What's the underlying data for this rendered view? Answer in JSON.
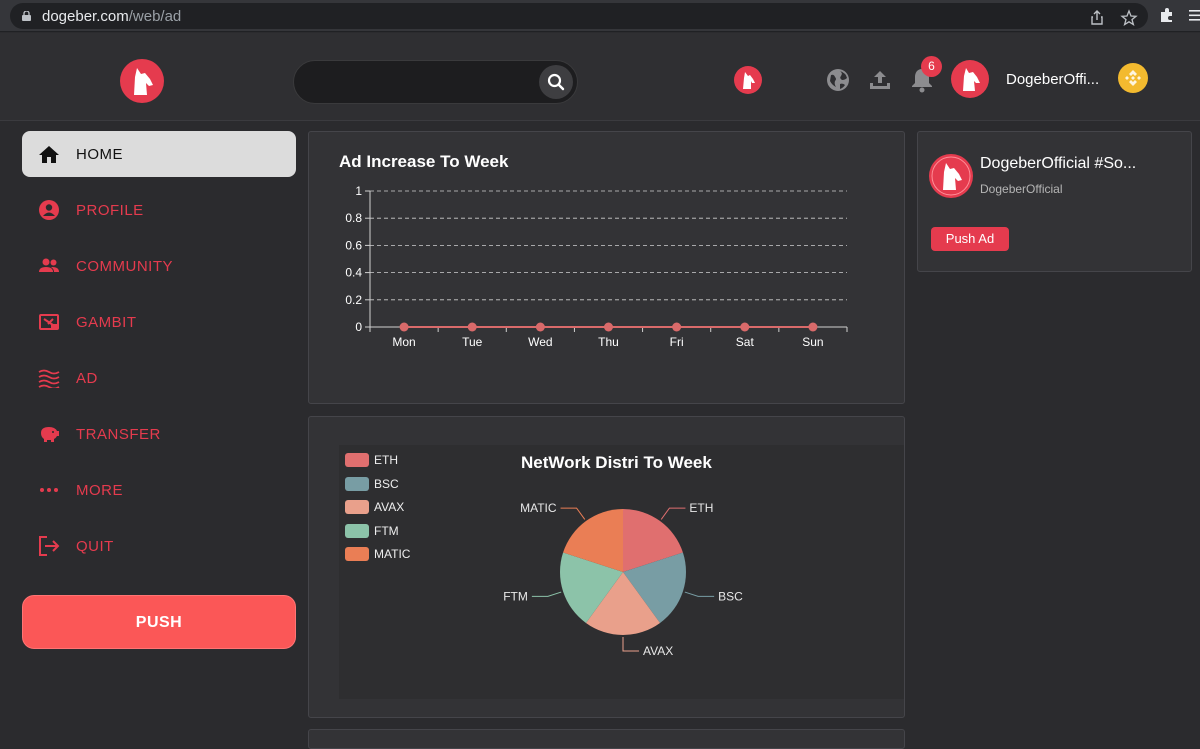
{
  "browser": {
    "url_host": "dogeber.com",
    "url_path": "/web/ad"
  },
  "header": {
    "search": {
      "placeholder": ""
    },
    "notification_count": "6",
    "username": "DogeberOffi..."
  },
  "sidebar": {
    "items": [
      {
        "label": "HOME",
        "icon": "home-icon",
        "active": true
      },
      {
        "label": "PROFILE",
        "icon": "profile-icon"
      },
      {
        "label": "COMMUNITY",
        "icon": "community-icon"
      },
      {
        "label": "GAMBIT",
        "icon": "gambit-icon"
      },
      {
        "label": "AD",
        "icon": "ad-icon"
      },
      {
        "label": "TRANSFER",
        "icon": "piggy-bank-icon"
      },
      {
        "label": "MORE",
        "icon": "more-icon"
      },
      {
        "label": "QUIT",
        "icon": "logout-icon"
      }
    ],
    "push_label": "PUSH"
  },
  "profile_card": {
    "name": "DogeberOfficial #So...",
    "handle": "DogeberOfficial",
    "push_ad_label": "Push Ad"
  },
  "colors": {
    "accent": "#e53b4e",
    "push": "#fb5757",
    "background": "#2b2b2e",
    "card": "#333336"
  },
  "chart_data": [
    {
      "type": "line",
      "title": "Ad Increase To Week",
      "categories": [
        "Mon",
        "Tue",
        "Wed",
        "Thu",
        "Fri",
        "Sat",
        "Sun"
      ],
      "series": [
        {
          "values": [
            0,
            0,
            0,
            0,
            0,
            0,
            0
          ],
          "color": "#d96a6a"
        }
      ],
      "ylim": [
        0,
        1
      ],
      "yticks": [
        "0",
        "0.2",
        "0.4",
        "0.6",
        "0.8",
        "1"
      ],
      "grid": true
    },
    {
      "type": "pie",
      "title": "NetWork Distri To Week",
      "legend_position": "top-left",
      "slices": [
        {
          "name": "ETH",
          "value": 1,
          "color": "#e06f6f"
        },
        {
          "name": "BSC",
          "value": 1,
          "color": "#789da4"
        },
        {
          "name": "AVAX",
          "value": 1,
          "color": "#e9a08b"
        },
        {
          "name": "FTM",
          "value": 1,
          "color": "#8cc3a9"
        },
        {
          "name": "MATIC",
          "value": 1,
          "color": "#ea7e55"
        }
      ]
    }
  ]
}
